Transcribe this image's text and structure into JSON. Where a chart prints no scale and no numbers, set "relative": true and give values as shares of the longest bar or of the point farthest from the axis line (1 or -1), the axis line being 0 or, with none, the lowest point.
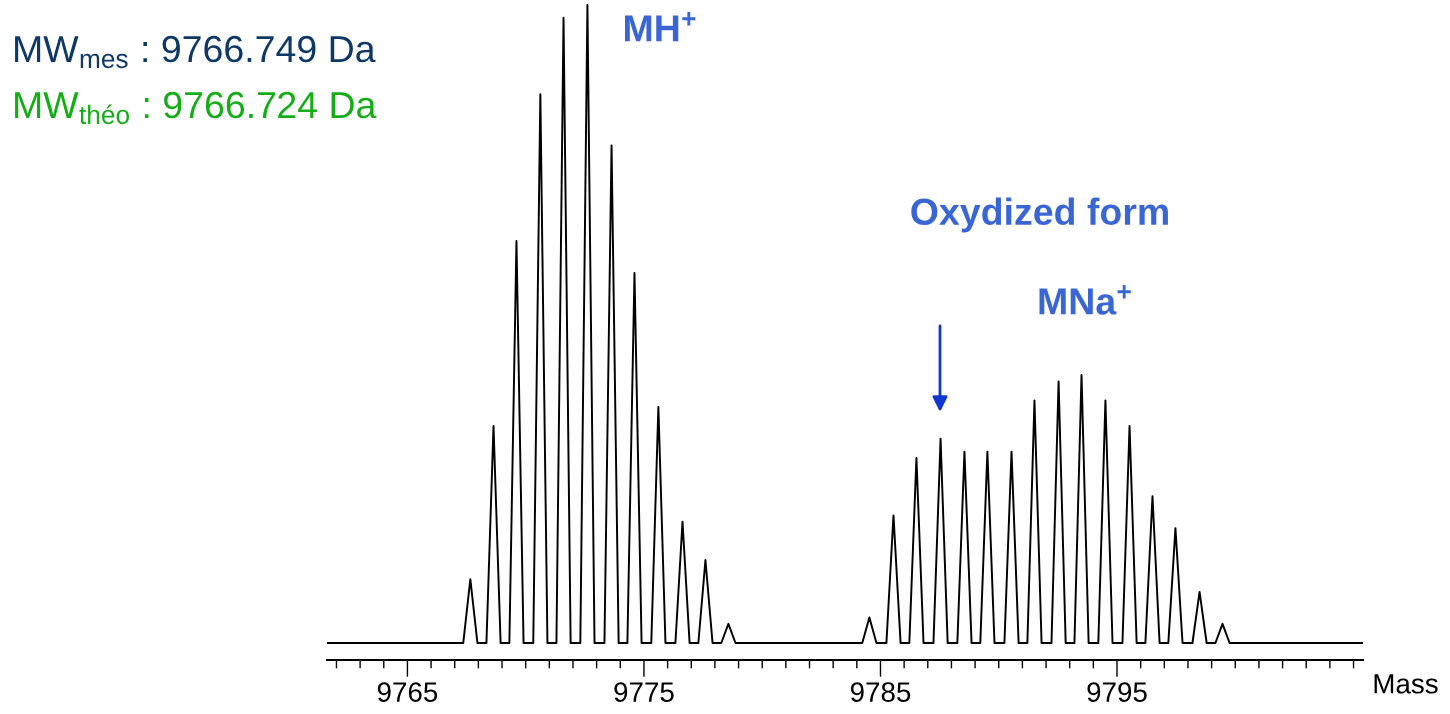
{
  "chart_data": {
    "type": "line",
    "relative": true,
    "xlabel": "Mass",
    "color": "#000000",
    "x": [
      9761.6,
      9767.36,
      9767.66,
      9767.96,
      9768.34,
      9768.64,
      9768.94,
      9769.31,
      9769.61,
      9769.91,
      9770.32,
      9770.62,
      9770.92,
      9771.3,
      9771.6,
      9771.9,
      9772.31,
      9772.61,
      9772.91,
      9773.33,
      9773.63,
      9773.93,
      9774.3,
      9774.6,
      9774.9,
      9775.31,
      9775.61,
      9775.91,
      9776.33,
      9776.63,
      9776.93,
      9777.3,
      9777.6,
      9777.9,
      9778.27,
      9778.57,
      9778.87,
      9784.23,
      9784.53,
      9784.83,
      9785.25,
      9785.55,
      9785.85,
      9786.22,
      9786.52,
      9786.82,
      9787.24,
      9787.54,
      9787.84,
      9788.25,
      9788.55,
      9788.85,
      9789.22,
      9789.52,
      9789.82,
      9790.24,
      9790.54,
      9790.84,
      9791.21,
      9791.51,
      9791.81,
      9792.23,
      9792.53,
      9792.83,
      9793.2,
      9793.5,
      9793.8,
      9794.21,
      9794.51,
      9794.81,
      9795.23,
      9795.53,
      9795.83,
      9796.2,
      9796.5,
      9796.8,
      9797.17,
      9797.47,
      9797.77,
      9798.19,
      9798.49,
      9798.79,
      9799.16,
      9799.46,
      9799.76,
      9805.4
    ],
    "values": [
      0,
      0,
      0.1,
      0,
      0,
      0.34,
      0,
      0,
      0.63,
      0,
      0,
      0.86,
      0,
      0,
      0.98,
      0,
      0,
      1,
      0,
      0,
      0.78,
      0,
      0,
      0.58,
      0,
      0,
      0.37,
      0,
      0,
      0.19,
      0,
      0,
      0.13,
      0,
      0,
      0.03,
      0,
      0,
      0.04,
      0,
      0,
      0.2,
      0,
      0,
      0.29,
      0,
      0,
      0.32,
      0,
      0,
      0.3,
      0,
      0,
      0.3,
      0,
      0,
      0.3,
      0,
      0,
      0.38,
      0,
      0,
      0.41,
      0,
      0,
      0.42,
      0,
      0,
      0.38,
      0,
      0,
      0.34,
      0,
      0,
      0.23,
      0,
      0,
      0.18,
      0,
      0,
      0.08,
      0,
      0,
      0.03,
      0,
      0
    ],
    "xlim": [
      9761.6,
      9805.4
    ],
    "xticks": [
      9765,
      9775,
      9785,
      9795
    ],
    "tick_labels": "x",
    "grid": false,
    "legend": false,
    "marker": "none",
    "line_style": "solid",
    "annotations": [
      "MW$_{mes}$ : 9766.749 Da",
      "MW$_{théo}$ : 9766.724 Da",
      "MH$^{+}$",
      "Oxydized form",
      "MNa$^{+}$"
    ]
  }
}
